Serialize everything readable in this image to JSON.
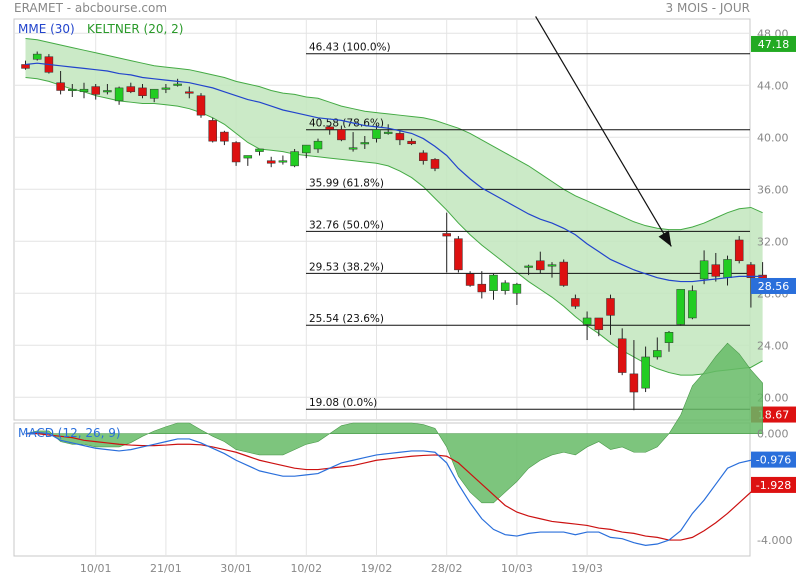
{
  "header": {
    "left": "ERAMET - abcbourse.com",
    "right": "3 MOIS - JOUR"
  },
  "chart_data": [
    {
      "type": "candlestick",
      "legend": {
        "mme": "MME (30)",
        "keltner": "KELTNER (20, 2)"
      },
      "y_ticks": [
        "48.00",
        "44.00",
        "40.00",
        "36.00",
        "32.00",
        "28.00",
        "24.00",
        "20.00"
      ],
      "y_tick_values": [
        48,
        44,
        40,
        36,
        32,
        28,
        24,
        20
      ],
      "ylim": [
        18.25,
        49.1
      ],
      "x_ticks": [
        "10/01",
        "21/01",
        "30/01",
        "10/02",
        "19/02",
        "28/02",
        "10/03",
        "19/03"
      ],
      "x_tick_index": [
        6,
        12,
        18,
        24,
        30,
        36,
        42,
        48
      ],
      "candles": [
        [
          45.6,
          45.9,
          45.2,
          45.3
        ],
        [
          46.0,
          46.6,
          45.9,
          46.4
        ],
        [
          46.2,
          46.4,
          44.9,
          45.0
        ],
        [
          44.2,
          45.1,
          43.3,
          43.6
        ],
        [
          43.7,
          44.1,
          43.1,
          43.7
        ],
        [
          43.5,
          44.2,
          43.0,
          43.7
        ],
        [
          43.9,
          44.1,
          42.9,
          43.3
        ],
        [
          43.6,
          44.1,
          43.3,
          43.6
        ],
        [
          42.8,
          43.9,
          42.5,
          43.8
        ],
        [
          43.9,
          44.2,
          43.4,
          43.5
        ],
        [
          43.8,
          44.1,
          43.0,
          43.2
        ],
        [
          43.0,
          43.7,
          42.7,
          43.7
        ],
        [
          43.7,
          44.1,
          43.4,
          43.8
        ],
        [
          44.1,
          44.5,
          43.9,
          44.1
        ],
        [
          43.5,
          43.9,
          43.0,
          43.4
        ],
        [
          43.2,
          43.4,
          41.5,
          41.7
        ],
        [
          41.3,
          41.5,
          39.6,
          39.7
        ],
        [
          40.4,
          40.5,
          39.4,
          39.7
        ],
        [
          39.6,
          39.7,
          37.8,
          38.1
        ],
        [
          38.4,
          38.6,
          37.8,
          38.6
        ],
        [
          38.9,
          39.1,
          38.6,
          39.1
        ],
        [
          38.2,
          38.5,
          37.7,
          38.0
        ],
        [
          38.2,
          38.6,
          37.9,
          38.2
        ],
        [
          37.8,
          39.1,
          37.7,
          38.9
        ],
        [
          38.8,
          39.4,
          38.4,
          39.4
        ],
        [
          39.1,
          39.9,
          38.8,
          39.7
        ],
        [
          40.8,
          40.9,
          40.2,
          40.6
        ],
        [
          40.6,
          40.9,
          39.7,
          39.8
        ],
        [
          39.2,
          40.4,
          38.9,
          39.2
        ],
        [
          39.6,
          40.1,
          39.1,
          39.6
        ],
        [
          39.9,
          41.0,
          39.6,
          40.6
        ],
        [
          40.4,
          41.0,
          40.2,
          40.4
        ],
        [
          40.3,
          40.6,
          39.4,
          39.8
        ],
        [
          39.7,
          39.9,
          39.4,
          39.5
        ],
        [
          38.8,
          39.0,
          37.9,
          38.2
        ],
        [
          38.3,
          38.4,
          37.4,
          37.6
        ],
        [
          32.6,
          34.2,
          29.6,
          32.4
        ],
        [
          32.2,
          32.4,
          29.6,
          29.8
        ],
        [
          29.5,
          29.7,
          28.5,
          28.6
        ],
        [
          28.7,
          29.7,
          27.6,
          28.1
        ],
        [
          28.2,
          29.5,
          27.5,
          29.4
        ],
        [
          28.2,
          29.0,
          27.9,
          28.8
        ],
        [
          28.0,
          28.8,
          27.1,
          28.7
        ],
        [
          30.1,
          30.2,
          29.4,
          30.1
        ],
        [
          30.5,
          31.2,
          29.5,
          29.8
        ],
        [
          30.2,
          30.4,
          29.2,
          30.2
        ],
        [
          30.4,
          30.6,
          28.5,
          28.6
        ],
        [
          27.6,
          27.9,
          26.8,
          27.0
        ],
        [
          25.6,
          26.6,
          24.4,
          26.1
        ],
        [
          26.1,
          26.1,
          24.7,
          25.2
        ],
        [
          27.6,
          27.9,
          24.8,
          26.3
        ],
        [
          24.5,
          25.3,
          21.7,
          21.9
        ],
        [
          21.8,
          24.4,
          19.0,
          20.4
        ],
        [
          20.7,
          23.9,
          20.4,
          23.1
        ],
        [
          23.1,
          24.6,
          22.9,
          23.6
        ],
        [
          24.2,
          25.1,
          23.5,
          25.0
        ],
        [
          25.6,
          28.3,
          25.5,
          28.3
        ],
        [
          26.1,
          28.6,
          26.0,
          28.2
        ],
        [
          29.1,
          31.3,
          28.7,
          30.5
        ],
        [
          30.2,
          31.1,
          28.9,
          29.3
        ],
        [
          29.2,
          30.9,
          28.6,
          30.6
        ],
        [
          32.1,
          32.4,
          30.3,
          30.5
        ],
        [
          30.2,
          30.4,
          26.9,
          29.2
        ],
        [
          29.4,
          30.4,
          28.0,
          28.6
        ]
      ],
      "mme": [
        45.6,
        45.7,
        45.6,
        45.5,
        45.4,
        45.3,
        45.2,
        45.1,
        44.9,
        44.8,
        44.6,
        44.5,
        44.4,
        44.3,
        44.2,
        44.0,
        43.8,
        43.5,
        43.2,
        42.9,
        42.7,
        42.4,
        42.1,
        41.9,
        41.7,
        41.5,
        41.4,
        41.3,
        41.1,
        40.9,
        40.8,
        40.7,
        40.5,
        40.3,
        39.9,
        39.3,
        38.6,
        37.6,
        36.8,
        36.1,
        35.6,
        35.1,
        34.6,
        34.1,
        33.7,
        33.4,
        33.0,
        32.5,
        31.8,
        31.2,
        30.6,
        30.2,
        29.8,
        29.5,
        29.2,
        29.0,
        28.9,
        28.9,
        29.0,
        29.1,
        29.2,
        29.3,
        29.3,
        29.3
      ],
      "keltner_upper": [
        47.6,
        47.5,
        47.3,
        47.1,
        46.9,
        46.7,
        46.5,
        46.3,
        46.1,
        45.9,
        45.7,
        45.5,
        45.4,
        45.3,
        45.2,
        45.0,
        44.8,
        44.6,
        44.3,
        44.1,
        43.9,
        43.6,
        43.4,
        43.3,
        43.1,
        43.0,
        42.7,
        42.4,
        42.2,
        42.0,
        41.9,
        41.8,
        41.7,
        41.6,
        41.5,
        41.3,
        41.0,
        40.7,
        40.3,
        39.8,
        39.3,
        38.8,
        38.3,
        37.8,
        37.2,
        36.6,
        36.0,
        35.5,
        35.1,
        34.7,
        34.3,
        33.9,
        33.5,
        33.2,
        33.0,
        32.9,
        32.9,
        33.1,
        33.4,
        33.8,
        34.2,
        34.5,
        34.6,
        34.2
      ],
      "keltner_lower": [
        44.6,
        44.5,
        44.3,
        44.0,
        43.7,
        43.5,
        43.2,
        43.0,
        42.8,
        42.7,
        42.6,
        42.6,
        42.5,
        42.4,
        42.2,
        41.9,
        41.5,
        41.0,
        40.3,
        39.6,
        39.1,
        39.0,
        38.9,
        38.7,
        38.6,
        38.5,
        38.4,
        38.3,
        38.2,
        38.1,
        38.0,
        37.8,
        37.4,
        36.9,
        36.2,
        35.3,
        34.4,
        33.4,
        32.5,
        31.7,
        31.0,
        30.3,
        29.6,
        28.9,
        28.3,
        27.7,
        27.0,
        26.2,
        25.5,
        24.9,
        24.2,
        23.6,
        23.1,
        22.6,
        22.2,
        21.9,
        21.7,
        21.7,
        21.8,
        22.0,
        22.1,
        22.2,
        22.3,
        22.8
      ],
      "fibonacci": [
        {
          "value": 46.43,
          "label": "46.43",
          "pct": "(100.0%)"
        },
        {
          "value": 40.58,
          "label": "40.58",
          "pct": "(78.6%)"
        },
        {
          "value": 35.99,
          "label": "35.99",
          "pct": "(61.8%)"
        },
        {
          "value": 32.76,
          "label": "32.76",
          "pct": "(50.0%)"
        },
        {
          "value": 29.53,
          "label": "29.53",
          "pct": "(38.2%)"
        },
        {
          "value": 25.54,
          "label": "25.54",
          "pct": "(23.6%)"
        },
        {
          "value": 19.08,
          "label": "19.08",
          "pct": "(0.0%)"
        }
      ],
      "badges": [
        {
          "value": 47.18,
          "label": "47.18",
          "color": "#22aa22"
        },
        {
          "value": 28.56,
          "label": "28.56",
          "color": "#2a6fdb"
        },
        {
          "value": 18.67,
          "label": "18.67",
          "color": "#dd1111"
        }
      ],
      "trendline": {
        "from": [
          43.6,
          49.3
        ],
        "to": [
          55.2,
          31.6
        ]
      },
      "colors": {
        "up": "#22cc22",
        "down": "#dd1111",
        "mme": "#2244cc",
        "band_fill": "#c2e6bd",
        "band_line": "#44aa44"
      }
    },
    {
      "type": "line",
      "legend": "MACD (12, 26, 9)",
      "y_ticks": [
        "0.000",
        "-4.000"
      ],
      "y_tick_values": [
        0,
        -4
      ],
      "ylim": [
        -4.6,
        0.4
      ],
      "macd": [
        0.0,
        0.05,
        0.0,
        -0.25,
        -0.35,
        -0.45,
        -0.55,
        -0.6,
        -0.65,
        -0.6,
        -0.5,
        -0.4,
        -0.3,
        -0.2,
        -0.2,
        -0.35,
        -0.55,
        -0.75,
        -1.0,
        -1.2,
        -1.4,
        -1.5,
        -1.6,
        -1.6,
        -1.55,
        -1.5,
        -1.3,
        -1.1,
        -1.0,
        -0.9,
        -0.8,
        -0.75,
        -0.7,
        -0.65,
        -0.65,
        -0.7,
        -1.1,
        -1.9,
        -2.6,
        -3.2,
        -3.6,
        -3.8,
        -3.85,
        -3.75,
        -3.7,
        -3.7,
        -3.7,
        -3.8,
        -3.7,
        -3.7,
        -3.9,
        -3.95,
        -4.1,
        -4.2,
        -4.15,
        -4.0,
        -3.65,
        -3.0,
        -2.5,
        -1.9,
        -1.3,
        -1.1,
        -1.0,
        -0.976
      ],
      "signal": [
        0.0,
        0.0,
        -0.05,
        -0.1,
        -0.15,
        -0.25,
        -0.3,
        -0.35,
        -0.4,
        -0.43,
        -0.45,
        -0.45,
        -0.43,
        -0.4,
        -0.4,
        -0.42,
        -0.5,
        -0.6,
        -0.7,
        -0.85,
        -1.0,
        -1.1,
        -1.2,
        -1.3,
        -1.35,
        -1.35,
        -1.3,
        -1.25,
        -1.2,
        -1.1,
        -1.0,
        -0.95,
        -0.9,
        -0.85,
        -0.82,
        -0.8,
        -0.85,
        -1.1,
        -1.5,
        -1.9,
        -2.3,
        -2.7,
        -2.95,
        -3.1,
        -3.2,
        -3.3,
        -3.35,
        -3.4,
        -3.45,
        -3.55,
        -3.6,
        -3.7,
        -3.75,
        -3.85,
        -3.9,
        -4.0,
        -4.0,
        -3.9,
        -3.65,
        -3.35,
        -3.0,
        -2.6,
        -2.2,
        -1.928
      ],
      "badges": [
        {
          "value": -0.976,
          "label": "-0.976",
          "color": "#2a6fdb"
        },
        {
          "value": -1.928,
          "label": "-1.928",
          "color": "#dd1111"
        }
      ],
      "colors": {
        "macd": "#2a6fdb",
        "signal": "#cc1111",
        "histogram": "#66bb66"
      }
    }
  ]
}
